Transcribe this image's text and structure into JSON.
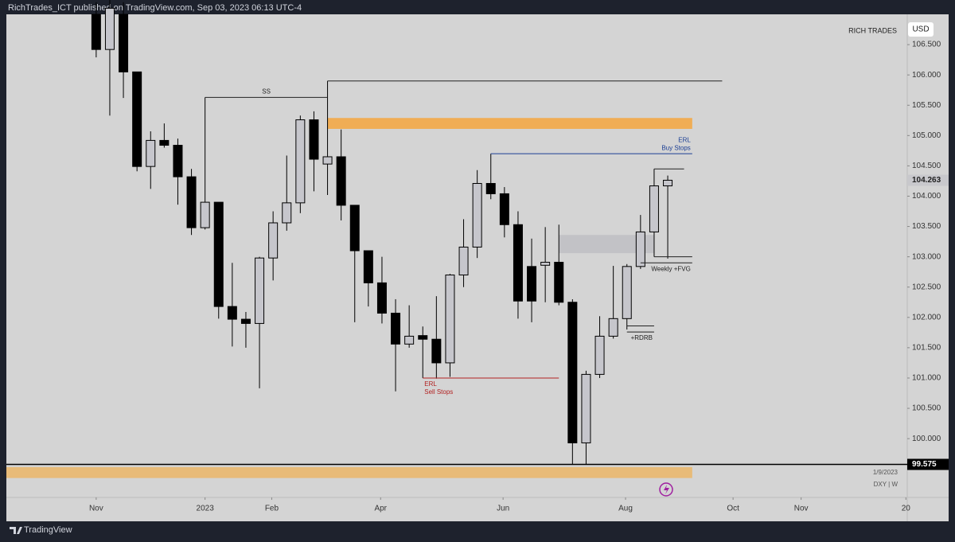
{
  "header": "RichTrades_ICT published on TradingView.com, Sep 03, 2023 06:13 UTC-4",
  "brand": "RICH TRADES",
  "currency": "USD",
  "footer": "TradingView",
  "symbol": "DXY | W",
  "date_label": "1/9/2023",
  "chart_data": {
    "type": "candlestick",
    "up_color": "#c6c6cc",
    "down_color": "#000000",
    "x": [
      0,
      1,
      2,
      3,
      4,
      5,
      6,
      7,
      8,
      9,
      10,
      11,
      12,
      13,
      14,
      15,
      16,
      17,
      18,
      19,
      20,
      21,
      22,
      23,
      24,
      25,
      26,
      27,
      28,
      29,
      30,
      31,
      32,
      33,
      34,
      35,
      36,
      37,
      38,
      39,
      40,
      41,
      42
    ],
    "open": [
      107.0,
      106.42,
      107.0,
      106.05,
      104.49,
      104.92,
      104.84,
      104.32,
      103.48,
      103.9,
      102.18,
      101.97,
      101.9,
      102.98,
      103.56,
      103.89,
      105.26,
      104.53,
      104.65,
      103.85,
      103.1,
      102.57,
      102.07,
      101.56,
      101.7,
      101.64,
      101.25,
      102.7,
      103.16,
      104.21,
      104.04,
      103.53,
      102.84,
      102.86,
      102.91,
      102.25,
      99.93,
      101.06,
      101.69,
      101.98,
      102.84,
      103.41,
      104.17
    ],
    "high": [
      107.2,
      107.3,
      107.2,
      106.05,
      105.07,
      105.2,
      104.95,
      104.45,
      105.63,
      103.9,
      102.9,
      102.09,
      103.0,
      103.75,
      104.67,
      105.33,
      105.4,
      105.9,
      105.1,
      103.85,
      103.1,
      103.0,
      102.3,
      102.2,
      101.85,
      102.35,
      102.72,
      103.62,
      104.43,
      104.7,
      104.15,
      103.75,
      103.3,
      103.49,
      103.53,
      102.3,
      101.12,
      102.02,
      102.85,
      102.88,
      103.69,
      104.45,
      104.34
    ],
    "low": [
      106.29,
      105.33,
      105.62,
      104.41,
      104.12,
      104.8,
      103.86,
      103.36,
      103.45,
      101.98,
      101.52,
      101.5,
      100.83,
      102.61,
      103.43,
      103.72,
      104.08,
      104.02,
      103.6,
      101.92,
      102.18,
      101.9,
      100.78,
      101.5,
      101.0,
      100.99,
      101.02,
      102.5,
      102.98,
      103.95,
      103.32,
      101.98,
      101.92,
      102.25,
      102.2,
      99.575,
      99.575,
      101.0,
      101.65,
      101.8,
      102.8,
      103.0,
      102.97
    ],
    "close": [
      106.42,
      107.1,
      106.05,
      104.49,
      104.92,
      104.84,
      104.32,
      103.48,
      103.9,
      102.18,
      101.97,
      101.9,
      102.98,
      103.56,
      103.89,
      105.26,
      104.61,
      104.65,
      103.85,
      103.1,
      102.57,
      102.07,
      101.56,
      101.69,
      101.64,
      101.25,
      102.7,
      103.16,
      104.21,
      104.04,
      103.53,
      102.27,
      102.27,
      102.91,
      102.25,
      99.93,
      101.06,
      101.69,
      101.98,
      102.84,
      103.41,
      104.17,
      104.263
    ],
    "xlim": [
      -6.6,
      59.6
    ],
    "ylim": [
      99.03,
      107.0
    ],
    "xticks": [
      {
        "value": 0,
        "label": "Nov"
      },
      {
        "value": 8.0,
        "label": "2023"
      },
      {
        "value": 12.9,
        "label": "Feb"
      },
      {
        "value": 20.9,
        "label": "Apr"
      },
      {
        "value": 29.9,
        "label": "Jun"
      },
      {
        "value": 38.9,
        "label": "Aug"
      },
      {
        "value": 46.8,
        "label": "Oct"
      },
      {
        "value": 51.8,
        "label": "Nov"
      },
      {
        "value": 59.5,
        "label": "20"
      }
    ],
    "yticks": [
      {
        "value": 100,
        "label": "100.000"
      },
      {
        "value": 100.5,
        "label": "100.500"
      },
      {
        "value": 101,
        "label": "101.000"
      },
      {
        "value": 101.5,
        "label": "101.500"
      },
      {
        "value": 102,
        "label": "102.000"
      },
      {
        "value": 102.5,
        "label": "102.500"
      },
      {
        "value": 103,
        "label": "103.000"
      },
      {
        "value": 103.5,
        "label": "103.500"
      },
      {
        "value": 104,
        "label": "104.000"
      },
      {
        "value": 104.5,
        "label": "104.500"
      },
      {
        "value": 105,
        "label": "105.000"
      },
      {
        "value": 105.5,
        "label": "105.500"
      },
      {
        "value": 106,
        "label": "106.000"
      },
      {
        "value": 106.5,
        "label": "106.500"
      }
    ],
    "zones": [
      {
        "y": [
          105.11,
          105.29
        ],
        "x": [
          17,
          43.8
        ],
        "color": "#f0ad55"
      },
      {
        "y": [
          99.35,
          99.53
        ],
        "x": [
          -6.6,
          43.8
        ],
        "color": "#e8bb78"
      },
      {
        "y": [
          103.06,
          103.36
        ],
        "x": [
          34,
          41
        ],
        "color": "#c2c2c6"
      }
    ],
    "levels": [
      {
        "y": 105.63,
        "x": [
          8,
          17
        ],
        "text": [
          "SS"
        ],
        "text_pos": "above",
        "align": "middle",
        "color": "#222222"
      },
      {
        "y": 105.9,
        "x": [
          17,
          46
        ],
        "color": "#222222"
      },
      {
        "y": 104.7,
        "x": [
          29,
          43.8
        ],
        "text": [
          "ERL",
          "Buy Stops"
        ],
        "text_pos": "above",
        "align": "end",
        "color": "#1c3f94"
      },
      {
        "y": 101.0,
        "x": [
          24,
          34
        ],
        "text": [
          "ERL",
          "Sell Stops"
        ],
        "text_pos": "below",
        "align": "start",
        "color": "#b22222"
      },
      {
        "y": 104.45,
        "x": [
          41,
          43.2
        ],
        "color": "#222222"
      },
      {
        "y": 103.0,
        "x": [
          41,
          43.8
        ],
        "color": "#222222"
      },
      {
        "y": 102.9,
        "x": [
          40,
          43.8
        ],
        "text": [
          "Weekly +FVG"
        ],
        "text_pos": "below",
        "align": "end",
        "color": "#222222"
      },
      {
        "y": 101.86,
        "x": [
          39,
          41
        ],
        "color": "#222222"
      },
      {
        "y": 101.76,
        "x": [
          39,
          41
        ],
        "text": [
          "+RDRB"
        ],
        "text_pos": "below",
        "align": "end",
        "color": "#222222"
      },
      {
        "y": 99.575,
        "x": [
          -6.6,
          59.6
        ],
        "color": "#000000"
      }
    ],
    "price_labels": [
      {
        "value": 104.263,
        "label": "104.263",
        "style": "light"
      },
      {
        "value": 99.575,
        "label": "99.575",
        "style": "dark"
      }
    ]
  }
}
